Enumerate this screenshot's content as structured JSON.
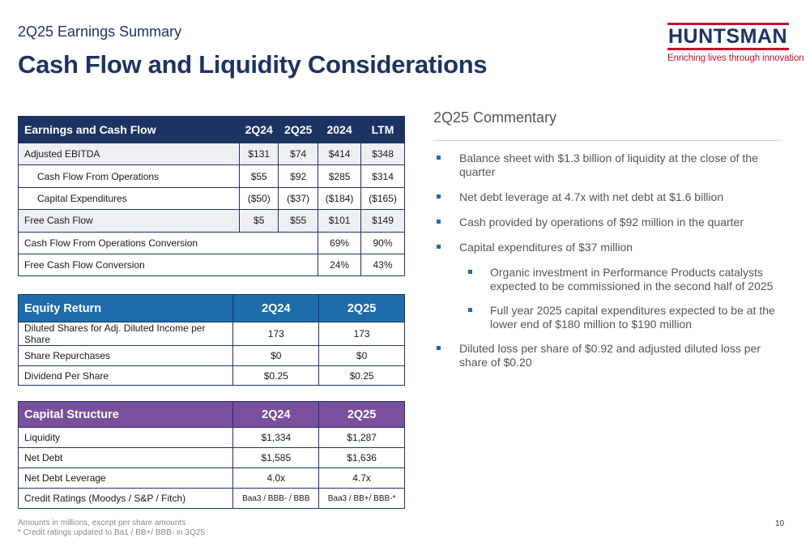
{
  "header": {
    "subtitle": "2Q25 Earnings Summary",
    "title": "Cash Flow and Liquidity Considerations"
  },
  "logo": {
    "wordmark": "HUNTSMAN",
    "tagline": "Enriching lives through innovation",
    "colors": {
      "navy": "#1d3463",
      "red": "#c8102e"
    }
  },
  "earnings_table": {
    "header_color": "#1d3463",
    "columns": [
      "Earnings and Cash Flow",
      "2Q24",
      "2Q25",
      "2024",
      "LTM"
    ],
    "rows": [
      [
        "Adjusted EBITDA",
        "$131",
        "$74",
        "$414",
        "$348"
      ],
      [
        "Cash Flow From Operations",
        "$55",
        "$92",
        "$285",
        "$314"
      ],
      [
        "Capital Expenditures",
        "($50)",
        "($37)",
        "($184)",
        "($165)"
      ],
      [
        "Free Cash Flow",
        "$5",
        "$55",
        "$101",
        "$149"
      ]
    ],
    "conversion_rows": [
      [
        "Cash Flow From Operations Conversion",
        "69%",
        "90%"
      ],
      [
        "Free Cash Flow Conversion",
        "24%",
        "43%"
      ]
    ]
  },
  "equity_table": {
    "header_color": "#1e6cab",
    "columns": [
      "Equity Return",
      "2Q24",
      "2Q25"
    ],
    "rows": [
      [
        "Diluted Shares for Adj. Diluted Income per Share",
        "173",
        "173"
      ],
      [
        "Share Repurchases",
        "$0",
        "$0"
      ],
      [
        "Dividend Per Share",
        "$0.25",
        "$0.25"
      ]
    ]
  },
  "capital_table": {
    "header_color": "#7a4f9e",
    "columns": [
      "Capital Structure",
      "2Q24",
      "2Q25"
    ],
    "rows": [
      [
        "Liquidity",
        "$1,334",
        "$1,287"
      ],
      [
        "Net Debt",
        "$1,585",
        "$1,636"
      ],
      [
        "Net Debt Leverage",
        "4.0x",
        "4.7x"
      ],
      [
        "Credit Ratings (Moodys / S&P / Fitch)",
        "Baa3 / BBB- / BBB",
        "Baa3 / BB+/ BBB-*"
      ]
    ]
  },
  "commentary": {
    "heading": "2Q25 Commentary",
    "bullets": [
      "Balance sheet with $1.3 billion of liquidity at the close of the quarter",
      "Net debt leverage at 4.7x with net debt at $1.6 billion",
      "Cash provided by operations of $92 million in the quarter",
      "Capital expenditures of $37 million",
      "Organic investment in Performance Products catalysts expected to be commissioned in the second half of 2025",
      "Full year 2025 capital expenditures expected to be at the lower end of $180 million to $190 million",
      "Diluted loss per share of $0.92 and adjusted diluted loss per share of $0.20"
    ]
  },
  "footer": {
    "note1": "Amounts in millions, except per share amounts",
    "note2": "* Credit ratings updated to Ba1 / BB+/ BBB- in 3Q25",
    "page_number": "10"
  }
}
